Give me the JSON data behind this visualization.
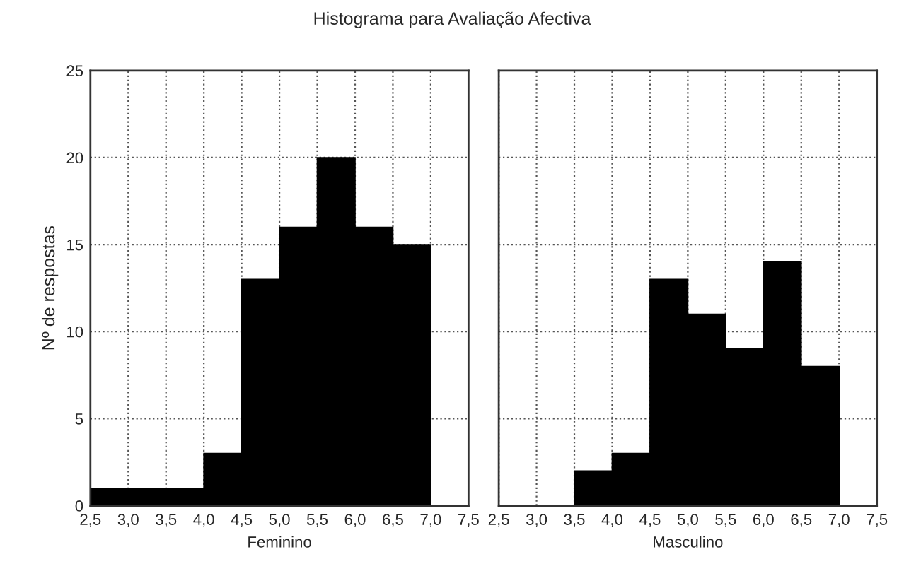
{
  "chart_data": [
    {
      "type": "histogram",
      "title": "Histograma para Avaliação Afectiva",
      "xlabel": "Feminino",
      "ylabel": "Nº de respostas",
      "bins": [
        2.5,
        3.0,
        3.5,
        4.0,
        4.5,
        5.0,
        5.5,
        6.0,
        6.5,
        7.0,
        7.5
      ],
      "values": [
        1,
        1,
        1,
        3,
        13,
        16,
        20,
        16,
        15,
        0
      ],
      "color": "#000000",
      "xlim": [
        2.5,
        7.5
      ],
      "xticks": [
        {
          "value": 2.5,
          "label": "2,5"
        },
        {
          "value": 3.0,
          "label": "3,0"
        },
        {
          "value": 3.5,
          "label": "3,5"
        },
        {
          "value": 4.0,
          "label": "4,0"
        },
        {
          "value": 4.5,
          "label": "4,5"
        },
        {
          "value": 5.0,
          "label": "5,0"
        },
        {
          "value": 5.5,
          "label": "5,5"
        },
        {
          "value": 6.0,
          "label": "6,0"
        },
        {
          "value": 6.5,
          "label": "6,5"
        },
        {
          "value": 7.0,
          "label": "7,0"
        },
        {
          "value": 7.5,
          "label": "7,5"
        }
      ],
      "ylim": [
        0,
        25
      ],
      "yticks": [
        0,
        5,
        10,
        15,
        20,
        25
      ],
      "grid": true
    },
    {
      "type": "histogram",
      "xlabel": "Masculino",
      "bins": [
        2.5,
        3.0,
        3.5,
        4.0,
        4.5,
        5.0,
        5.5,
        6.0,
        6.5,
        7.0,
        7.5
      ],
      "values": [
        0,
        0,
        2,
        3,
        13,
        11,
        9,
        14,
        8,
        0
      ],
      "color": "#000000",
      "xlim": [
        2.5,
        7.5
      ],
      "xticks": [
        {
          "value": 2.5,
          "label": "2,5"
        },
        {
          "value": 3.0,
          "label": "3,0"
        },
        {
          "value": 3.5,
          "label": "3,5"
        },
        {
          "value": 4.0,
          "label": "4,0"
        },
        {
          "value": 4.5,
          "label": "4,5"
        },
        {
          "value": 5.0,
          "label": "5,0"
        },
        {
          "value": 5.5,
          "label": "5,5"
        },
        {
          "value": 6.0,
          "label": "6,0"
        },
        {
          "value": 6.5,
          "label": "6,5"
        },
        {
          "value": 7.0,
          "label": "7,0"
        },
        {
          "value": 7.5,
          "label": "7,5"
        }
      ],
      "ylim": [
        0,
        25
      ],
      "yticks": [
        0,
        5,
        10,
        15,
        20,
        25
      ],
      "grid": true,
      "tick_labels": "x"
    }
  ]
}
